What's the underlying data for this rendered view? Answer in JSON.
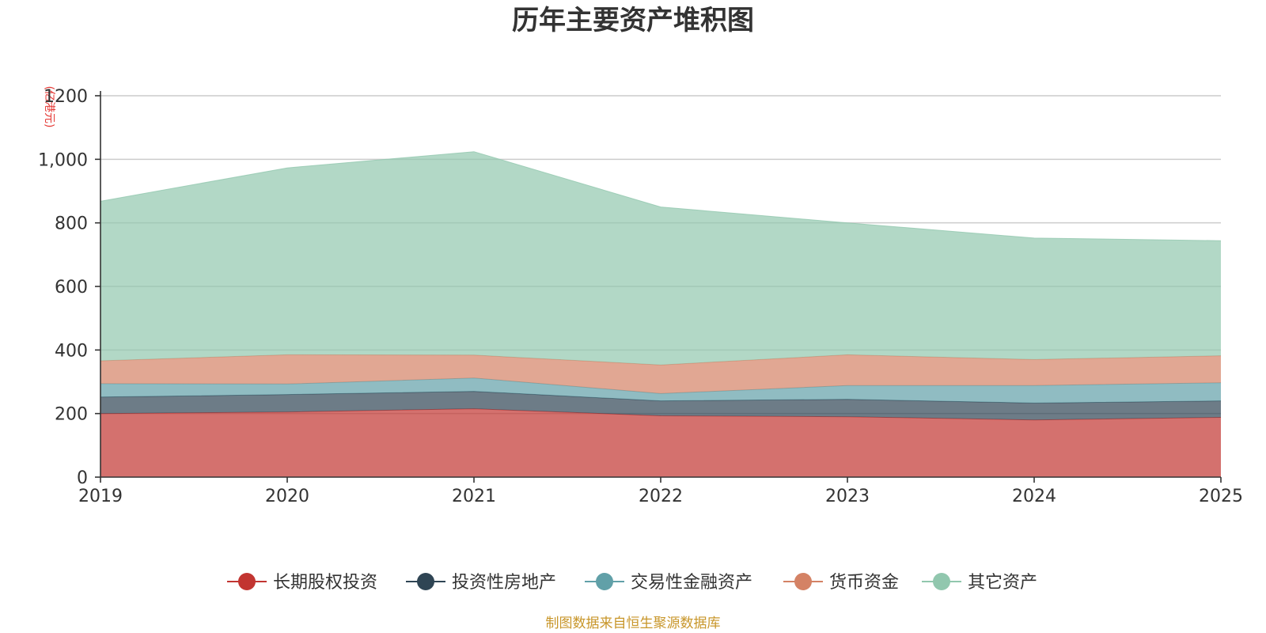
{
  "chart_data": {
    "type": "area",
    "stacked": true,
    "title": "历年主要资产堆积图",
    "unit_label": "(亿港元)",
    "categories": [
      "2019",
      "2020",
      "2021",
      "2022",
      "2023",
      "2024",
      "2025"
    ],
    "ylim": [
      0,
      1200
    ],
    "yticks": [
      0,
      200,
      400,
      600,
      800,
      1000,
      1200
    ],
    "ytick_labels": [
      "0",
      "200",
      "400",
      "600",
      "800",
      "1,000",
      "1200"
    ],
    "grid": true,
    "legend_position": "bottom",
    "series": [
      {
        "name": "长期股权投资",
        "color": "#c23531",
        "values": [
          200,
          205,
          215,
          193,
          190,
          180,
          188
        ]
      },
      {
        "name": "投资性房地产",
        "color": "#2f4554",
        "values": [
          52,
          55,
          55,
          47,
          55,
          53,
          52
        ]
      },
      {
        "name": "交易性金融资产",
        "color": "#61a0a8",
        "values": [
          42,
          33,
          42,
          23,
          43,
          55,
          57
        ]
      },
      {
        "name": "货币资金",
        "color": "#d48265",
        "values": [
          72,
          92,
          72,
          90,
          97,
          82,
          85
        ]
      },
      {
        "name": "其它资产",
        "color": "#91c7ae",
        "values": [
          502,
          588,
          640,
          497,
          415,
          382,
          362
        ]
      }
    ],
    "source_note": "制图数据来自恒生聚源数据库"
  }
}
